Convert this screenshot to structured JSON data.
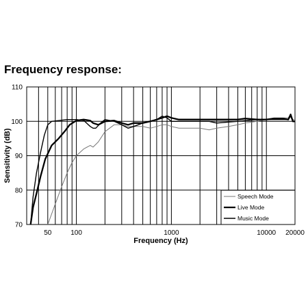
{
  "page": {
    "heading": "Frequency response:"
  },
  "chart_data": {
    "type": "line",
    "xlabel": "Frequency (Hz)",
    "ylabel": "Sensitivity (dB)",
    "xscale": "log",
    "xlim": [
      30,
      20000
    ],
    "ylim": [
      70,
      110
    ],
    "y_ticks": [
      70,
      80,
      90,
      100,
      110
    ],
    "x_tick_labels": [
      {
        "value": 50,
        "label": "50"
      },
      {
        "value": 100,
        "label": "100"
      },
      {
        "value": 1000,
        "label": "1000"
      },
      {
        "value": 10000,
        "label": "10000"
      },
      {
        "value": 20000,
        "label": "20000"
      }
    ],
    "grid": true,
    "legend_placement": "bottom-right",
    "series": [
      {
        "name": "Speech Mode",
        "color": "#777777",
        "style": "thin",
        "points": [
          [
            50,
            70
          ],
          [
            60,
            76
          ],
          [
            70,
            81
          ],
          [
            80,
            85
          ],
          [
            90,
            88
          ],
          [
            100,
            90
          ],
          [
            120,
            92
          ],
          [
            140,
            93
          ],
          [
            150,
            92.5
          ],
          [
            170,
            94
          ],
          [
            200,
            97
          ],
          [
            250,
            99
          ],
          [
            300,
            99
          ],
          [
            350,
            98.5
          ],
          [
            400,
            98.5
          ],
          [
            500,
            98.5
          ],
          [
            600,
            98
          ],
          [
            700,
            98.5
          ],
          [
            800,
            99
          ],
          [
            900,
            99
          ],
          [
            1000,
            98.5
          ],
          [
            1200,
            98
          ],
          [
            1500,
            98
          ],
          [
            2000,
            98
          ],
          [
            2500,
            97.5
          ],
          [
            3000,
            98
          ],
          [
            4000,
            98.5
          ],
          [
            5000,
            99
          ],
          [
            6000,
            99.5
          ],
          [
            8000,
            100
          ],
          [
            10000,
            100.5
          ],
          [
            12000,
            101
          ],
          [
            15000,
            101
          ],
          [
            17000,
            101
          ],
          [
            18000,
            102
          ],
          [
            19000,
            100.5
          ],
          [
            20000,
            100.5
          ]
        ]
      },
      {
        "name": "Live Mode",
        "color": "#000000",
        "style": "thick",
        "points": [
          [
            33,
            70
          ],
          [
            35,
            75
          ],
          [
            38,
            79
          ],
          [
            42,
            84
          ],
          [
            47,
            89
          ],
          [
            55,
            93
          ],
          [
            65,
            95
          ],
          [
            75,
            97
          ],
          [
            85,
            99
          ],
          [
            100,
            100.2
          ],
          [
            120,
            100.5
          ],
          [
            140,
            100.2
          ],
          [
            150,
            99.5
          ],
          [
            170,
            99
          ],
          [
            200,
            100
          ],
          [
            250,
            100.2
          ],
          [
            300,
            99.5
          ],
          [
            350,
            99
          ],
          [
            400,
            99.5
          ],
          [
            500,
            99.5
          ],
          [
            600,
            100
          ],
          [
            700,
            100.5
          ],
          [
            800,
            101
          ],
          [
            900,
            101.5
          ],
          [
            1000,
            101
          ],
          [
            1200,
            100.5
          ],
          [
            1500,
            100.5
          ],
          [
            2000,
            100.5
          ],
          [
            2500,
            100.5
          ],
          [
            3000,
            100.5
          ],
          [
            4000,
            100.5
          ],
          [
            5000,
            100.5
          ],
          [
            6000,
            100.8
          ],
          [
            8000,
            100.5
          ],
          [
            10000,
            100.5
          ],
          [
            12000,
            100.8
          ],
          [
            15000,
            100.8
          ],
          [
            17000,
            100.5
          ],
          [
            18000,
            102
          ],
          [
            19000,
            100
          ],
          [
            20000,
            100
          ]
        ]
      },
      {
        "name": "Music Mode",
        "color": "#000000",
        "style": "medium",
        "points": [
          [
            33,
            70
          ],
          [
            35,
            78
          ],
          [
            38,
            85
          ],
          [
            42,
            91
          ],
          [
            46,
            96
          ],
          [
            50,
            99
          ],
          [
            55,
            100
          ],
          [
            65,
            100.2
          ],
          [
            80,
            100.5
          ],
          [
            100,
            100.5
          ],
          [
            120,
            100.2
          ],
          [
            140,
            98.5
          ],
          [
            150,
            98
          ],
          [
            160,
            98
          ],
          [
            180,
            99.5
          ],
          [
            200,
            100.5
          ],
          [
            250,
            100
          ],
          [
            300,
            99
          ],
          [
            350,
            98
          ],
          [
            400,
            98.5
          ],
          [
            500,
            99.5
          ],
          [
            600,
            100
          ],
          [
            700,
            100.5
          ],
          [
            800,
            101.5
          ],
          [
            900,
            101
          ],
          [
            1000,
            100
          ],
          [
            1200,
            100
          ],
          [
            1500,
            100
          ],
          [
            2000,
            100
          ],
          [
            2500,
            100
          ],
          [
            3000,
            99.5
          ],
          [
            4000,
            99.8
          ],
          [
            5000,
            100
          ],
          [
            6000,
            100.2
          ],
          [
            8000,
            100.5
          ],
          [
            10000,
            100.5
          ],
          [
            12000,
            100.5
          ],
          [
            15000,
            100.5
          ],
          [
            17000,
            100.5
          ],
          [
            18000,
            101.5
          ],
          [
            19000,
            100
          ],
          [
            20000,
            100
          ]
        ]
      }
    ]
  }
}
